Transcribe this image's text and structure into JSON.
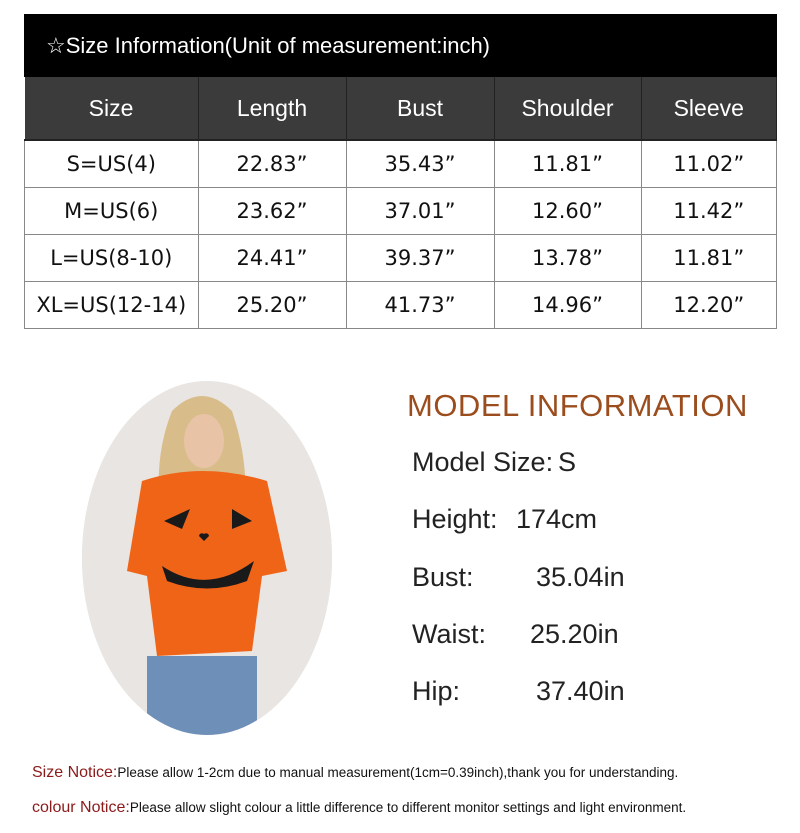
{
  "title": "☆Size Information(Unit of measurement:inch)",
  "headers": [
    "Size",
    "Length",
    "Bust",
    "Shoulder",
    "Sleeve"
  ],
  "rows": [
    [
      "S=US(4)",
      "22.83”",
      "35.43”",
      "11.81”",
      "11.02”"
    ],
    [
      "M=US(6)",
      "23.62”",
      "37.01”",
      "12.60”",
      "11.42”"
    ],
    [
      "L=US(8-10)",
      "24.41”",
      "39.37”",
      "13.78”",
      "11.81”"
    ],
    [
      "XL=US(12-14)",
      "25.20”",
      "41.73”",
      "14.96”",
      "12.20”"
    ]
  ],
  "model": {
    "title": "MODEL INFORMATION",
    "items": [
      {
        "label": "Model Size:",
        "value": "S"
      },
      {
        "label": "Height:",
        "value": "174cm"
      },
      {
        "label": "Bust:",
        "value": "35.04in"
      },
      {
        "label": "Waist:",
        "value": "25.20in"
      },
      {
        "label": "Hip:",
        "value": "37.40in"
      }
    ]
  },
  "notices": [
    {
      "label": "Size Notice:",
      "text": "Please allow 1-2cm due to manual measurement(1cm=0.39inch),thank you for understanding."
    },
    {
      "label": "colour Notice:",
      "text": "Please allow slight colour a little difference to different monitor settings and light environment."
    }
  ],
  "colors": {
    "accent": "#9b4d1e",
    "notice": "#8b1a1a",
    "sweater": "#f06418"
  }
}
